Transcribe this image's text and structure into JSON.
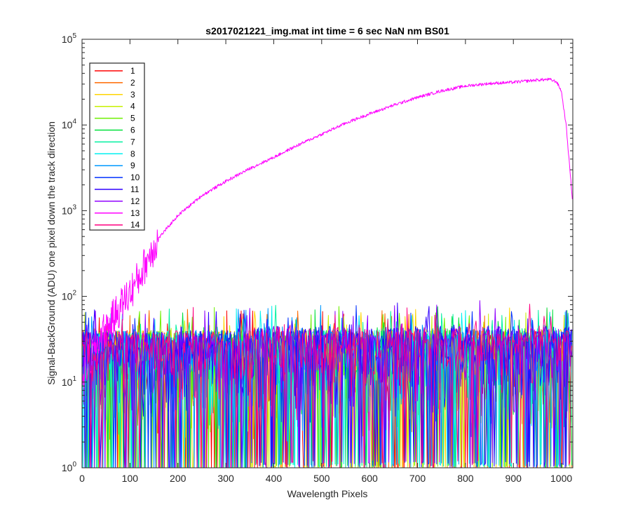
{
  "chart_data": {
    "type": "line",
    "title": "s2017021221_img.mat int time = 6 sec  NaN nm BS01",
    "xlabel": "Wavelength Pixels",
    "ylabel": "Signal-BackGround (ADU) one pixel down the track direction",
    "xlim": [
      0,
      1024
    ],
    "ylim": [
      1,
      100000
    ],
    "yscale": "log",
    "x_ticks": [
      "0",
      "100",
      "200",
      "300",
      "400",
      "500",
      "600",
      "700",
      "800",
      "900",
      "1000"
    ],
    "y_ticks": [
      {
        "base": "10",
        "exp": "0"
      },
      {
        "base": "10",
        "exp": "1"
      },
      {
        "base": "10",
        "exp": "2"
      },
      {
        "base": "10",
        "exp": "3"
      },
      {
        "base": "10",
        "exp": "4"
      },
      {
        "base": "10",
        "exp": "5"
      }
    ],
    "legend_position": "top-left",
    "series": [
      {
        "name": "1",
        "color": "#ff0000"
      },
      {
        "name": "2",
        "color": "#ff6a00"
      },
      {
        "name": "3",
        "color": "#ffd400"
      },
      {
        "name": "4",
        "color": "#c7f000"
      },
      {
        "name": "5",
        "color": "#6ef000"
      },
      {
        "name": "6",
        "color": "#00e03a"
      },
      {
        "name": "7",
        "color": "#00f0a0"
      },
      {
        "name": "8",
        "color": "#00f0f0"
      },
      {
        "name": "9",
        "color": "#0098ff"
      },
      {
        "name": "10",
        "color": "#0030ff"
      },
      {
        "name": "11",
        "color": "#3000ff"
      },
      {
        "name": "12",
        "color": "#9000ff"
      },
      {
        "name": "13",
        "color": "#ff00ff"
      },
      {
        "name": "14",
        "color": "#ff0080"
      }
    ],
    "signal_series": {
      "name": "13",
      "profile": [
        [
          0,
          12
        ],
        [
          20,
          20
        ],
        [
          40,
          35
        ],
        [
          60,
          50
        ],
        [
          80,
          75
        ],
        [
          100,
          110
        ],
        [
          120,
          170
        ],
        [
          140,
          300
        ],
        [
          160,
          480
        ],
        [
          180,
          650
        ],
        [
          200,
          880
        ],
        [
          250,
          1500
        ],
        [
          300,
          2200
        ],
        [
          350,
          3100
        ],
        [
          400,
          4200
        ],
        [
          450,
          5800
        ],
        [
          500,
          7800
        ],
        [
          550,
          10500
        ],
        [
          600,
          13500
        ],
        [
          650,
          17000
        ],
        [
          700,
          21000
        ],
        [
          750,
          25000
        ],
        [
          800,
          28500
        ],
        [
          850,
          30500
        ],
        [
          900,
          31500
        ],
        [
          950,
          33500
        ],
        [
          975,
          34000
        ],
        [
          990,
          32000
        ],
        [
          1000,
          25000
        ],
        [
          1010,
          10000
        ],
        [
          1020,
          2200
        ],
        [
          1024,
          1200
        ]
      ]
    },
    "noise_series": {
      "typical_range": [
        2,
        40
      ],
      "min": 1,
      "max": 75
    }
  }
}
